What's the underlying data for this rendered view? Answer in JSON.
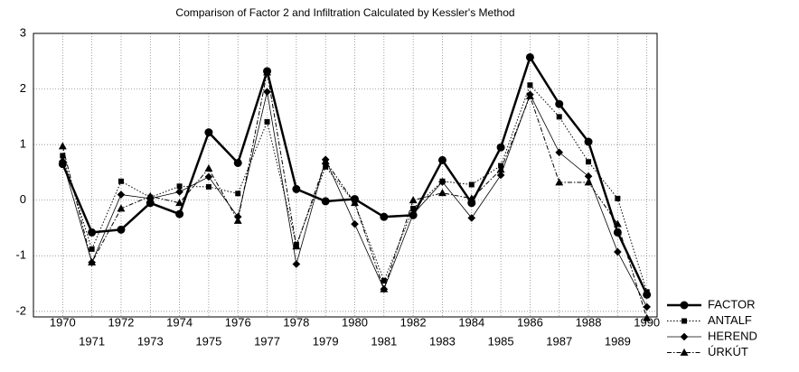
{
  "chart_data": {
    "type": "line",
    "title": "Comparison of Factor 2 and Infiltration Calculated by Kessler's Method",
    "x": [
      1970,
      1971,
      1972,
      1973,
      1974,
      1975,
      1976,
      1977,
      1978,
      1979,
      1980,
      1981,
      1982,
      1983,
      1984,
      1985,
      1986,
      1987,
      1988,
      1989,
      1990
    ],
    "xlim": [
      1969,
      1990.35
    ],
    "xticks": [
      1970,
      1971,
      1972,
      1973,
      1974,
      1975,
      1976,
      1977,
      1978,
      1979,
      1980,
      1981,
      1982,
      1983,
      1984,
      1985,
      1986,
      1987,
      1988,
      1989,
      1990
    ],
    "ylim": [
      -2.1,
      3
    ],
    "yticks": [
      -2,
      -1,
      0,
      1,
      2,
      3
    ],
    "grid": true,
    "legend": "bottom-right",
    "series": [
      {
        "name": "FACTOR",
        "color": "#000000",
        "marker": "circle",
        "dash": "solid",
        "line_width": 2.5,
        "values": [
          0.65,
          -0.58,
          -0.53,
          -0.05,
          -0.25,
          1.22,
          0.67,
          2.32,
          0.2,
          -0.02,
          0.02,
          -0.3,
          -0.27,
          0.72,
          -0.05,
          0.95,
          2.57,
          1.73,
          1.05,
          -0.58,
          -1.7
        ]
      },
      {
        "name": "ANTALF",
        "color": "#000000",
        "marker": "square",
        "dash": "dotted",
        "line_width": 1,
        "values": [
          0.8,
          -0.88,
          0.34,
          0.05,
          0.25,
          0.24,
          0.12,
          1.41,
          -0.8,
          0.6,
          -0.05,
          -1.45,
          -0.15,
          0.34,
          0.28,
          0.62,
          2.07,
          1.5,
          0.69,
          0.03,
          -1.65
        ]
      },
      {
        "name": "HEREND",
        "color": "#000000",
        "marker": "diamond",
        "dash": "solid",
        "line_width": 0.8,
        "values": [
          0.7,
          -1.12,
          0.1,
          0.03,
          0.15,
          0.42,
          -0.3,
          1.95,
          -1.15,
          0.73,
          -0.43,
          -1.6,
          -0.25,
          0.33,
          -0.32,
          0.45,
          1.9,
          0.86,
          0.43,
          -0.93,
          -1.92
        ]
      },
      {
        "name": "ÚRKÚT",
        "color": "#000000",
        "marker": "triangle",
        "dash": "dashdot",
        "line_width": 1,
        "values": [
          0.97,
          -1.12,
          -0.15,
          0.07,
          -0.05,
          0.57,
          -0.37,
          2.3,
          -0.83,
          0.7,
          -0.05,
          -1.6,
          0.0,
          0.13,
          0.03,
          0.55,
          1.87,
          0.32,
          0.32,
          -0.43,
          -2.12
        ]
      }
    ]
  }
}
